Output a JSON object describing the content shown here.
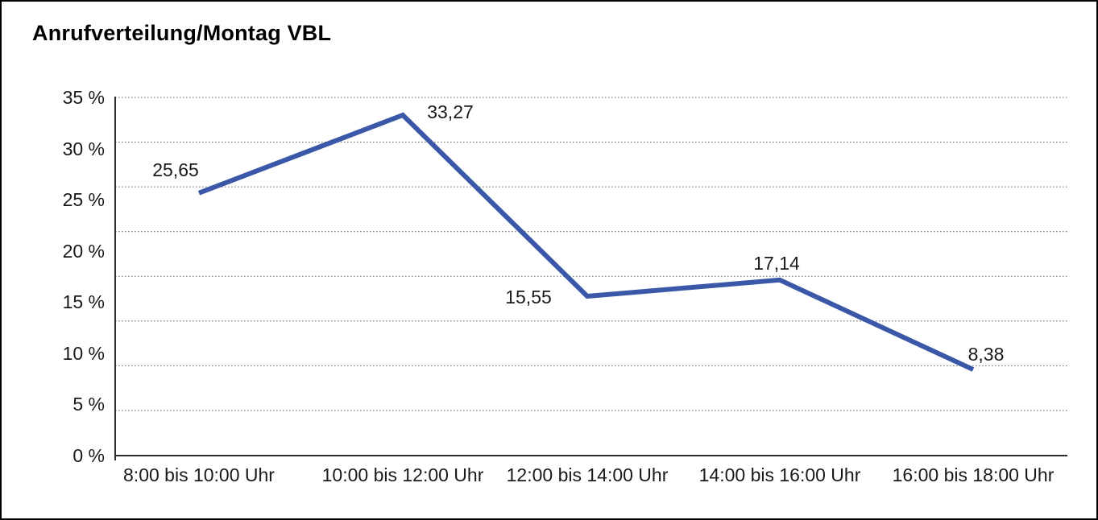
{
  "title": "Anrufverteilung/Montag VBL",
  "colors": {
    "line": "#3A58A7",
    "grid": "#6E6E6E",
    "axis": "#2E2E2E",
    "text": "#1A1A1A",
    "background": "#FFFFFF",
    "border": "#000000"
  },
  "chart_data": {
    "type": "line",
    "title": "Anrufverteilung/Montag VBL",
    "categories": [
      "8:00 bis 10:00 Uhr",
      "10:00 bis 12:00 Uhr",
      "12:00 bis 14:00 Uhr",
      "14:00 bis 16:00 Uhr",
      "16:00 bis 18:00 Uhr"
    ],
    "values": [
      25.65,
      33.27,
      15.55,
      17.14,
      8.38
    ],
    "point_labels": [
      "25,65",
      "33,27",
      "15,55",
      "17,14",
      "8,38"
    ],
    "xlabel": "",
    "ylabel": "",
    "ylim": [
      0,
      35
    ],
    "y_ticks": [
      {
        "value": 0,
        "label": "0 %"
      },
      {
        "value": 5,
        "label": "5 %"
      },
      {
        "value": 10,
        "label": "10 %"
      },
      {
        "value": 15,
        "label": "15 %"
      },
      {
        "value": 20,
        "label": "20 %"
      },
      {
        "value": 25,
        "label": "25 %"
      },
      {
        "value": 30,
        "label": "30 %"
      },
      {
        "value": 35,
        "label": "35 %"
      }
    ],
    "gridline_intervals": 8,
    "grid": "horizontal-dotted",
    "legend": "none"
  }
}
